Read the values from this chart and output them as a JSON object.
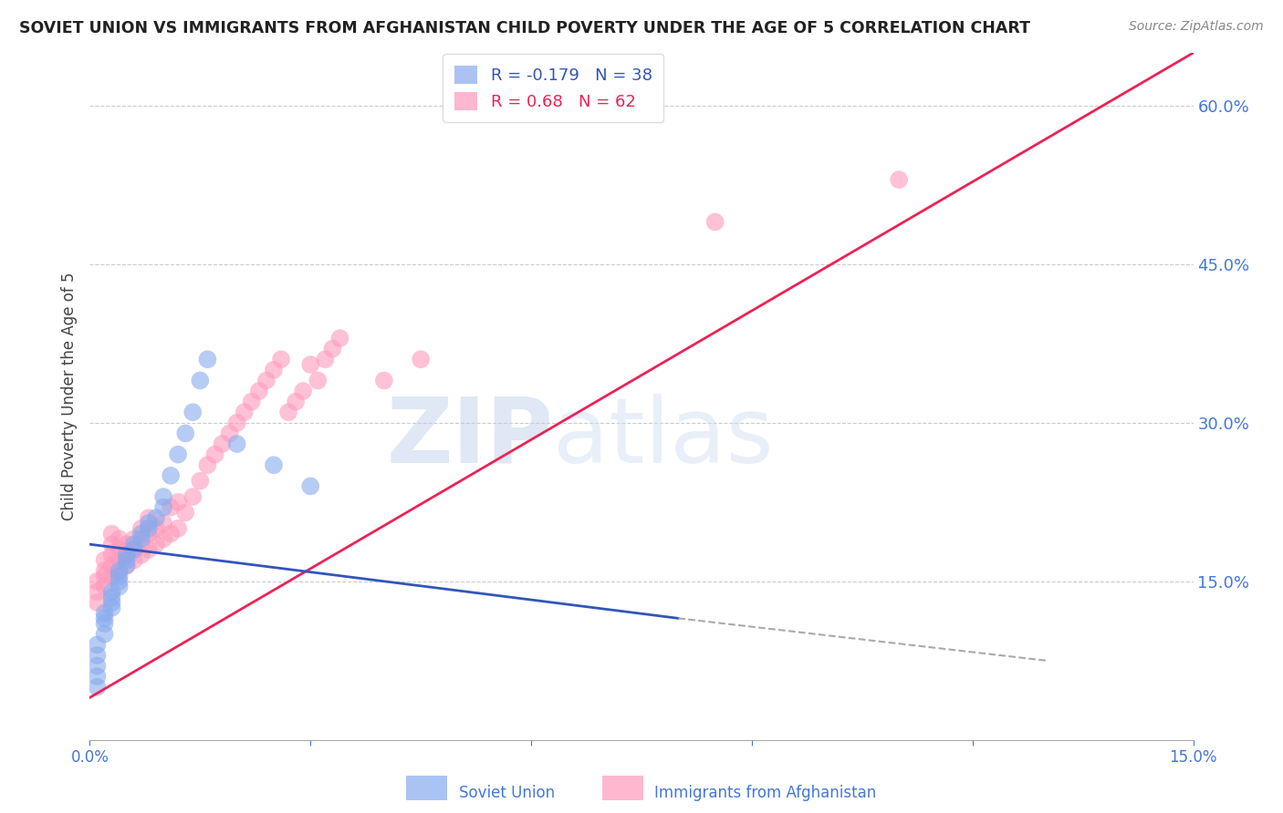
{
  "title": "SOVIET UNION VS IMMIGRANTS FROM AFGHANISTAN CHILD POVERTY UNDER THE AGE OF 5 CORRELATION CHART",
  "source": "Source: ZipAtlas.com",
  "ylabel": "Child Poverty Under the Age of 5",
  "xlim": [
    0.0,
    0.15
  ],
  "ylim": [
    0.0,
    0.65
  ],
  "yticks": [
    0.0,
    0.15,
    0.3,
    0.45,
    0.6
  ],
  "ytick_labels": [
    "",
    "15.0%",
    "30.0%",
    "45.0%",
    "60.0%"
  ],
  "xticks": [
    0.0,
    0.03,
    0.06,
    0.09,
    0.12,
    0.15
  ],
  "xtick_labels": [
    "0.0%",
    "",
    "",
    "",
    "",
    "15.0%"
  ],
  "tick_color": "#4477dd",
  "grid_color": "#cccccc",
  "background_color": "#ffffff",
  "soviet_color": "#88aaee",
  "afghan_color": "#ff99bb",
  "soviet_line_color": "#3355bb",
  "afghan_line_color": "#ee2255",
  "soviet_R": -0.179,
  "soviet_N": 38,
  "afghan_R": 0.68,
  "afghan_N": 62,
  "watermark_zip": "ZIP",
  "watermark_atlas": "atlas",
  "soviet_scatter_x": [
    0.001,
    0.001,
    0.001,
    0.001,
    0.001,
    0.002,
    0.002,
    0.002,
    0.002,
    0.003,
    0.003,
    0.003,
    0.003,
    0.004,
    0.004,
    0.004,
    0.004,
    0.005,
    0.005,
    0.005,
    0.006,
    0.006,
    0.007,
    0.007,
    0.008,
    0.008,
    0.009,
    0.01,
    0.01,
    0.011,
    0.012,
    0.013,
    0.014,
    0.015,
    0.016,
    0.02,
    0.025,
    0.03
  ],
  "soviet_scatter_y": [
    0.05,
    0.06,
    0.07,
    0.08,
    0.09,
    0.1,
    0.11,
    0.115,
    0.12,
    0.125,
    0.13,
    0.135,
    0.14,
    0.145,
    0.15,
    0.155,
    0.16,
    0.165,
    0.17,
    0.175,
    0.18,
    0.185,
    0.19,
    0.195,
    0.2,
    0.205,
    0.21,
    0.22,
    0.23,
    0.25,
    0.27,
    0.29,
    0.31,
    0.34,
    0.36,
    0.28,
    0.26,
    0.24
  ],
  "afghan_scatter_x": [
    0.001,
    0.001,
    0.001,
    0.002,
    0.002,
    0.002,
    0.002,
    0.003,
    0.003,
    0.003,
    0.003,
    0.003,
    0.004,
    0.004,
    0.004,
    0.004,
    0.005,
    0.005,
    0.005,
    0.006,
    0.006,
    0.006,
    0.007,
    0.007,
    0.007,
    0.008,
    0.008,
    0.008,
    0.009,
    0.009,
    0.01,
    0.01,
    0.011,
    0.011,
    0.012,
    0.012,
    0.013,
    0.014,
    0.015,
    0.016,
    0.017,
    0.018,
    0.019,
    0.02,
    0.021,
    0.022,
    0.023,
    0.024,
    0.025,
    0.026,
    0.027,
    0.028,
    0.029,
    0.03,
    0.031,
    0.032,
    0.033,
    0.034,
    0.04,
    0.045,
    0.085,
    0.11
  ],
  "afghan_scatter_y": [
    0.13,
    0.14,
    0.15,
    0.145,
    0.155,
    0.16,
    0.17,
    0.155,
    0.165,
    0.175,
    0.185,
    0.195,
    0.16,
    0.17,
    0.18,
    0.19,
    0.165,
    0.175,
    0.185,
    0.17,
    0.18,
    0.19,
    0.175,
    0.185,
    0.2,
    0.18,
    0.195,
    0.21,
    0.185,
    0.2,
    0.19,
    0.205,
    0.195,
    0.22,
    0.2,
    0.225,
    0.215,
    0.23,
    0.245,
    0.26,
    0.27,
    0.28,
    0.29,
    0.3,
    0.31,
    0.32,
    0.33,
    0.34,
    0.35,
    0.36,
    0.31,
    0.32,
    0.33,
    0.355,
    0.34,
    0.36,
    0.37,
    0.38,
    0.34,
    0.36,
    0.49,
    0.53
  ],
  "afghan_line_x0": 0.0,
  "afghan_line_y0": 0.04,
  "afghan_line_x1": 0.15,
  "afghan_line_y1": 0.65,
  "soviet_line_x0": 0.0,
  "soviet_line_y0": 0.185,
  "soviet_line_x1": 0.08,
  "soviet_line_y1": 0.115,
  "soviet_line_dash_x0": 0.08,
  "soviet_line_dash_y0": 0.115,
  "soviet_line_dash_x1": 0.13,
  "soviet_line_dash_y1": 0.075
}
